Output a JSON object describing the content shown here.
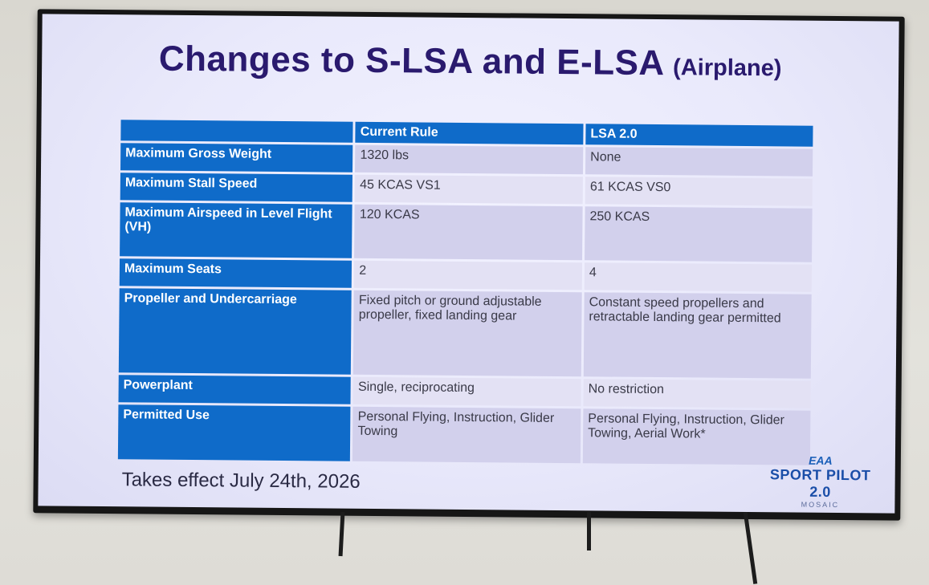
{
  "slide": {
    "title_main": "Changes to S-LSA and E-LSA",
    "title_sub": "(Airplane)",
    "table": {
      "columns": [
        "",
        "Current Rule",
        "LSA 2.0"
      ],
      "rows": [
        {
          "label": "Maximum Gross Weight",
          "current": "1320 lbs",
          "lsa": "None"
        },
        {
          "label": "Maximum Stall Speed",
          "current": "45 KCAS VS1",
          "lsa": "61 KCAS VS0"
        },
        {
          "label": "Maximum Airspeed in Level Flight (VH)",
          "current": "120 KCAS",
          "lsa": "250 KCAS"
        },
        {
          "label": "Maximum Seats",
          "current": "2",
          "lsa": "4"
        },
        {
          "label": "Propeller and Undercarriage",
          "current": "Fixed pitch or ground adjustable propeller, fixed landing gear",
          "lsa": "Constant speed propellers and retractable landing gear permitted"
        },
        {
          "label": "Powerplant",
          "current": "Single, reciprocating",
          "lsa": "No restriction"
        },
        {
          "label": "Permitted Use",
          "current": "Personal Flying, Instruction, Glider Towing",
          "lsa": "Personal Flying, Instruction, Glider Towing, Aerial Work*"
        }
      ]
    },
    "footer": "Takes effect July 24th, 2026",
    "logo": {
      "brand": "EAA",
      "name": "SPORT PILOT 2.0",
      "tag": "MOSAIC"
    }
  },
  "colors": {
    "header_blue": "#0f6bc9",
    "title_purple": "#2a1a6e",
    "cell_lavender": "#d2d0ec",
    "screen_bg": "#ececfb",
    "wall": "#dcdad4",
    "tv_bezel": "#161616"
  }
}
